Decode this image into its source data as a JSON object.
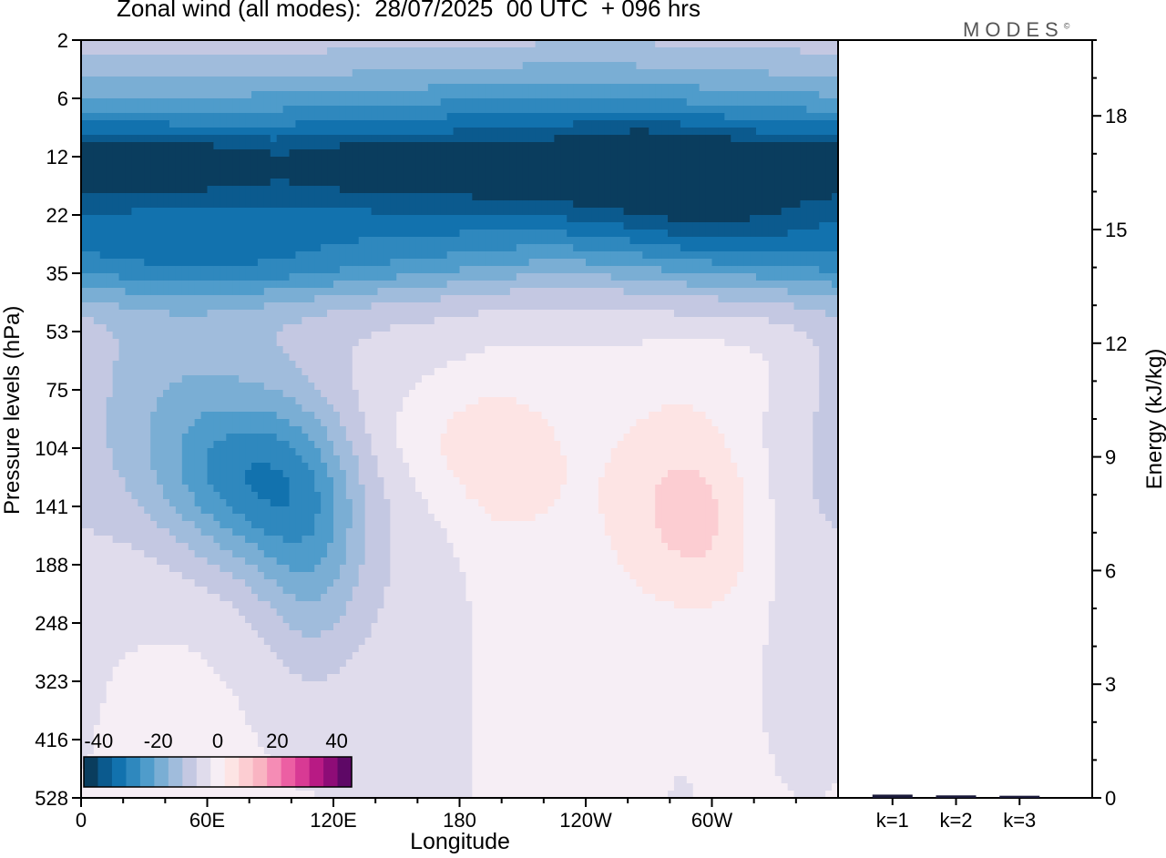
{
  "chart_data": [
    {
      "type": "heatmap",
      "title": "Zonal wind (all modes):  28/07/2025  00 UTC  + 096 hrs",
      "brand": "MODES",
      "brand_mark": "©",
      "xlabel": "Longitude",
      "ylabel": "Pressure levels (hPa)",
      "x_ticks": [
        "0",
        "60E",
        "120E",
        "180",
        "120W",
        "60W"
      ],
      "x_tick_values": [
        0,
        60,
        120,
        180,
        240,
        300
      ],
      "xlim": [
        0,
        360
      ],
      "y_ticks": [
        "2",
        "6",
        "12",
        "22",
        "35",
        "53",
        "75",
        "104",
        "141",
        "188",
        "248",
        "323",
        "416",
        "528"
      ],
      "colorbar": {
        "labels": [
          "-40",
          "-20",
          "0",
          "20",
          "40"
        ],
        "label_values": [
          -40,
          -20,
          0,
          20,
          40
        ],
        "range": [
          -45,
          45
        ],
        "colors": [
          "#0a3d5e",
          "#0b5a8e",
          "#1272ae",
          "#2f88be",
          "#4f9ccb",
          "#7aaed4",
          "#a0bcdc",
          "#c4c8e2",
          "#e0dcec",
          "#f6eef5",
          "#fde4e4",
          "#fccdd2",
          "#f9b4c2",
          "#f58cb5",
          "#ec5fa3",
          "#d83a94",
          "#b81a84",
          "#8e0c77",
          "#5e0866"
        ]
      },
      "blobs": [
        {
          "lon": 180,
          "level": 0.2,
          "sx": 400,
          "sy": 0.6,
          "value": -6
        },
        {
          "lon": 100,
          "level": 1.3,
          "sx": 130,
          "sy": 0.6,
          "value": -10
        },
        {
          "lon": 260,
          "level": 1.6,
          "sx": 70,
          "sy": 0.9,
          "value": -10
        },
        {
          "lon": 180,
          "level": 2.6,
          "sx": 400,
          "sy": 1.0,
          "value": -33
        },
        {
          "lon": 45,
          "level": 2.1,
          "sx": 35,
          "sy": 0.35,
          "value": -12
        },
        {
          "lon": 135,
          "level": 2.1,
          "sx": 25,
          "sy": 0.35,
          "value": -8
        },
        {
          "lon": 275,
          "level": 2.1,
          "sx": 30,
          "sy": 0.4,
          "value": -12
        },
        {
          "lon": 355,
          "level": 2.1,
          "sx": 25,
          "sy": 0.35,
          "value": -7
        },
        {
          "lon": 195,
          "level": 2.2,
          "sx": 25,
          "sy": 0.3,
          "value": -6
        },
        {
          "lon": 310,
          "level": 3.2,
          "sx": 40,
          "sy": 0.7,
          "value": -7
        },
        {
          "lon": 40,
          "level": 3.9,
          "sx": 70,
          "sy": 0.5,
          "value": -8
        },
        {
          "lon": 120,
          "level": 3.9,
          "sx": 80,
          "sy": 0.4,
          "value": -5
        },
        {
          "lon": 60,
          "level": 5.0,
          "sx": 55,
          "sy": 0.9,
          "value": -6
        },
        {
          "lon": 80,
          "level": 7.5,
          "sx": 30,
          "sy": 1.1,
          "value": -24
        },
        {
          "lon": 110,
          "level": 8.8,
          "sx": 20,
          "sy": 1.5,
          "value": -14
        },
        {
          "lon": 35,
          "level": 6.5,
          "sx": 30,
          "sy": 1.2,
          "value": -8
        },
        {
          "lon": 165,
          "level": 9.5,
          "sx": 22,
          "sy": 3.0,
          "value": -4
        },
        {
          "lon": 350,
          "level": 8.0,
          "sx": 25,
          "sy": 1.5,
          "value": -4
        },
        {
          "lon": 285,
          "level": 9.0,
          "sx": 20,
          "sy": 3.5,
          "value": -3
        },
        {
          "lon": 345,
          "level": 11.0,
          "sx": 12,
          "sy": 1.0,
          "value": -5
        },
        {
          "lon": 180,
          "level": 6.8,
          "sx": 30,
          "sy": 0.8,
          "value": 5
        },
        {
          "lon": 200,
          "level": 7.5,
          "sx": 25,
          "sy": 1.0,
          "value": 4
        },
        {
          "lon": 190,
          "level": 10.0,
          "sx": 30,
          "sy": 2.5,
          "value": 2
        },
        {
          "lon": 283,
          "level": 7.8,
          "sx": 22,
          "sy": 1.3,
          "value": 9
        },
        {
          "lon": 283,
          "level": 9.5,
          "sx": 35,
          "sy": 2.5,
          "value": 3
        },
        {
          "lon": 300,
          "level": 8.5,
          "sx": 18,
          "sy": 1.0,
          "value": 4
        },
        {
          "lon": 45,
          "level": 12.5,
          "sx": 20,
          "sy": 1.0,
          "value": 2
        },
        {
          "lon": 310,
          "level": 5.6,
          "sx": 30,
          "sy": 0.6,
          "value": 2
        }
      ],
      "base_value": -2
    },
    {
      "type": "bar",
      "ylabel": "Energy (kJ/kg)",
      "categories": [
        "k=1",
        "k=2",
        "k=3"
      ],
      "values": [
        0.05,
        0.03,
        0.02
      ],
      "ylim": [
        0,
        20
      ],
      "y_ticks": [
        0,
        3,
        6,
        9,
        12,
        15,
        18
      ],
      "y_minor_step": 1
    }
  ]
}
